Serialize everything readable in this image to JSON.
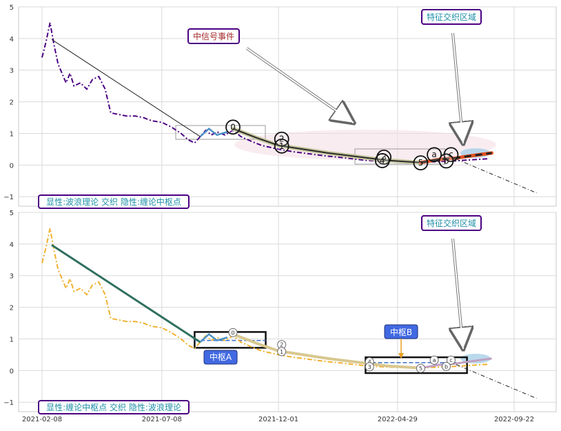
{
  "chart_data": [
    {
      "type": "line",
      "panel": "top",
      "ylim": [
        -1.3,
        5.0
      ],
      "yticks": [
        -1,
        0,
        1,
        2,
        3,
        4,
        5
      ],
      "xticks": [
        "2021-02-08",
        "2021-07-08",
        "2021-12-01",
        "2022-04-29",
        "2022-09-22"
      ],
      "series_color": "#4b0082",
      "series_style": "dash-dot",
      "price_series": [
        {
          "x": "2021-02-08",
          "y": 3.4
        },
        {
          "x": "2021-02-13",
          "y": 3.9
        },
        {
          "x": "2021-02-18",
          "y": 4.5
        },
        {
          "x": "2021-02-23",
          "y": 3.8
        },
        {
          "x": "2021-02-28",
          "y": 3.2
        },
        {
          "x": "2021-03-05",
          "y": 2.9
        },
        {
          "x": "2021-03-10",
          "y": 2.6
        },
        {
          "x": "2021-03-15",
          "y": 2.9
        },
        {
          "x": "2021-03-20",
          "y": 2.5
        },
        {
          "x": "2021-03-28",
          "y": 2.6
        },
        {
          "x": "2021-04-05",
          "y": 2.4
        },
        {
          "x": "2021-04-12",
          "y": 2.7
        },
        {
          "x": "2021-04-20",
          "y": 2.8
        },
        {
          "x": "2021-04-28",
          "y": 2.4
        },
        {
          "x": "2021-05-05",
          "y": 1.65
        },
        {
          "x": "2021-05-15",
          "y": 1.6
        },
        {
          "x": "2021-05-25",
          "y": 1.55
        },
        {
          "x": "2021-06-05",
          "y": 1.55
        },
        {
          "x": "2021-06-15",
          "y": 1.5
        },
        {
          "x": "2021-06-25",
          "y": 1.4
        },
        {
          "x": "2021-07-08",
          "y": 1.35
        },
        {
          "x": "2021-07-20",
          "y": 1.2
        },
        {
          "x": "2021-08-01",
          "y": 1.0
        },
        {
          "x": "2021-08-10",
          "y": 0.8
        },
        {
          "x": "2021-08-18",
          "y": 0.7
        },
        {
          "x": "2021-08-25",
          "y": 0.9
        },
        {
          "x": "2021-09-01",
          "y": 1.1
        },
        {
          "x": "2021-09-08",
          "y": 0.95
        },
        {
          "x": "2021-09-15",
          "y": 1.05
        },
        {
          "x": "2021-09-25",
          "y": 0.95
        },
        {
          "x": "2021-10-05",
          "y": 1.1
        },
        {
          "x": "2021-10-15",
          "y": 0.9
        },
        {
          "x": "2021-10-28",
          "y": 0.75
        },
        {
          "x": "2021-11-10",
          "y": 0.62
        },
        {
          "x": "2021-12-01",
          "y": 0.5
        },
        {
          "x": "2021-12-20",
          "y": 0.42
        },
        {
          "x": "2022-01-10",
          "y": 0.35
        },
        {
          "x": "2022-02-01",
          "y": 0.28
        },
        {
          "x": "2022-02-25",
          "y": 0.22
        },
        {
          "x": "2022-03-20",
          "y": 0.15
        },
        {
          "x": "2022-04-10",
          "y": 0.12
        },
        {
          "x": "2022-04-29",
          "y": 0.1
        },
        {
          "x": "2022-05-20",
          "y": 0.08
        },
        {
          "x": "2022-06-10",
          "y": 0.1
        },
        {
          "x": "2022-07-01",
          "y": 0.12
        },
        {
          "x": "2022-07-15",
          "y": 0.14
        },
        {
          "x": "2022-08-01",
          "y": 0.17
        },
        {
          "x": "2022-08-20",
          "y": 0.2
        }
      ],
      "trend_line": [
        {
          "x": "2021-02-20",
          "y": 3.97
        },
        {
          "x": "2021-08-25",
          "y": 0.9
        }
      ],
      "extrapolation": [
        {
          "x": "2022-07-01",
          "y": 0.3
        },
        {
          "x": "2022-10-20",
          "y": -0.88
        }
      ],
      "highlight_path": [
        {
          "x": "2021-10-05",
          "y": 1.15
        },
        {
          "x": "2021-11-05",
          "y": 0.85
        },
        {
          "x": "2021-12-01",
          "y": 0.62
        },
        {
          "x": "2022-02-01",
          "y": 0.38
        },
        {
          "x": "2022-04-15",
          "y": 0.15
        },
        {
          "x": "2022-05-28",
          "y": 0.08
        }
      ],
      "red_path": [
        {
          "x": "2022-05-28",
          "y": 0.08
        },
        {
          "x": "2022-06-20",
          "y": 0.18
        },
        {
          "x": "2022-07-10",
          "y": 0.22
        },
        {
          "x": "2022-08-01",
          "y": 0.3
        },
        {
          "x": "2022-08-25",
          "y": 0.38
        }
      ],
      "wave_markers": [
        {
          "label": "0",
          "x": "2021-10-05",
          "y": 1.2
        },
        {
          "label": "2",
          "x": "2021-12-05",
          "y": 0.82
        },
        {
          "label": "1",
          "x": "2021-12-05",
          "y": 0.6
        },
        {
          "label": "3",
          "x": "2022-04-12",
          "y": 0.25
        },
        {
          "label": "4",
          "x": "2022-04-10",
          "y": 0.14
        },
        {
          "label": "5",
          "x": "2022-05-28",
          "y": 0.07
        },
        {
          "label": "a",
          "x": "2022-06-14",
          "y": 0.33
        },
        {
          "label": "c",
          "x": "2022-07-05",
          "y": 0.33
        },
        {
          "label": "b",
          "x": "2022-06-29",
          "y": 0.13
        }
      ],
      "text_boxes": [
        {
          "text": "中信号事件",
          "color": "#a52a2a"
        },
        {
          "text": "特征交织区域",
          "color": "#1f8fa8"
        },
        {
          "text": "显性:波浪理论 交织 隐性:缠论中枢点",
          "color": "#1f8fa8"
        }
      ]
    },
    {
      "type": "line",
      "panel": "bottom",
      "ylim": [
        -1.3,
        5.0
      ],
      "yticks": [
        -1,
        0,
        1,
        2,
        3,
        4,
        5
      ],
      "xticks": [
        "2021-02-08",
        "2021-07-08",
        "2021-12-01",
        "2022-04-29",
        "2022-09-22"
      ],
      "series_color": "#f0b030",
      "series_style": "dash-dot",
      "centers": [
        {
          "name": "中枢A",
          "x0": "2021-08-18",
          "x1": "2021-11-15",
          "y0": 0.72,
          "y1": 1.22,
          "mid": 0.95
        },
        {
          "name": "中枢B",
          "x0": "2022-03-20",
          "x1": "2022-07-25",
          "y0": -0.08,
          "y1": 0.42,
          "mid": 0.25
        }
      ],
      "wave_markers": [
        {
          "label": "0",
          "x": "2021-10-05",
          "y": 1.2
        },
        {
          "label": "2",
          "x": "2021-12-05",
          "y": 0.82
        },
        {
          "label": "1",
          "x": "2021-12-05",
          "y": 0.6
        },
        {
          "label": "4",
          "x": "2022-03-25",
          "y": 0.28
        },
        {
          "label": "3",
          "x": "2022-03-25",
          "y": 0.12
        },
        {
          "label": "5",
          "x": "2022-05-28",
          "y": 0.07
        },
        {
          "label": "a",
          "x": "2022-06-14",
          "y": 0.33
        },
        {
          "label": "c",
          "x": "2022-07-05",
          "y": 0.33
        },
        {
          "label": "b",
          "x": "2022-06-29",
          "y": 0.13
        }
      ],
      "text_boxes": [
        {
          "text": "特征交织区域",
          "color": "#1f8fa8"
        },
        {
          "text": "显性:缠论中枢点 交织 隐性:波浪理论",
          "color": "#1f8fa8"
        }
      ]
    }
  ]
}
